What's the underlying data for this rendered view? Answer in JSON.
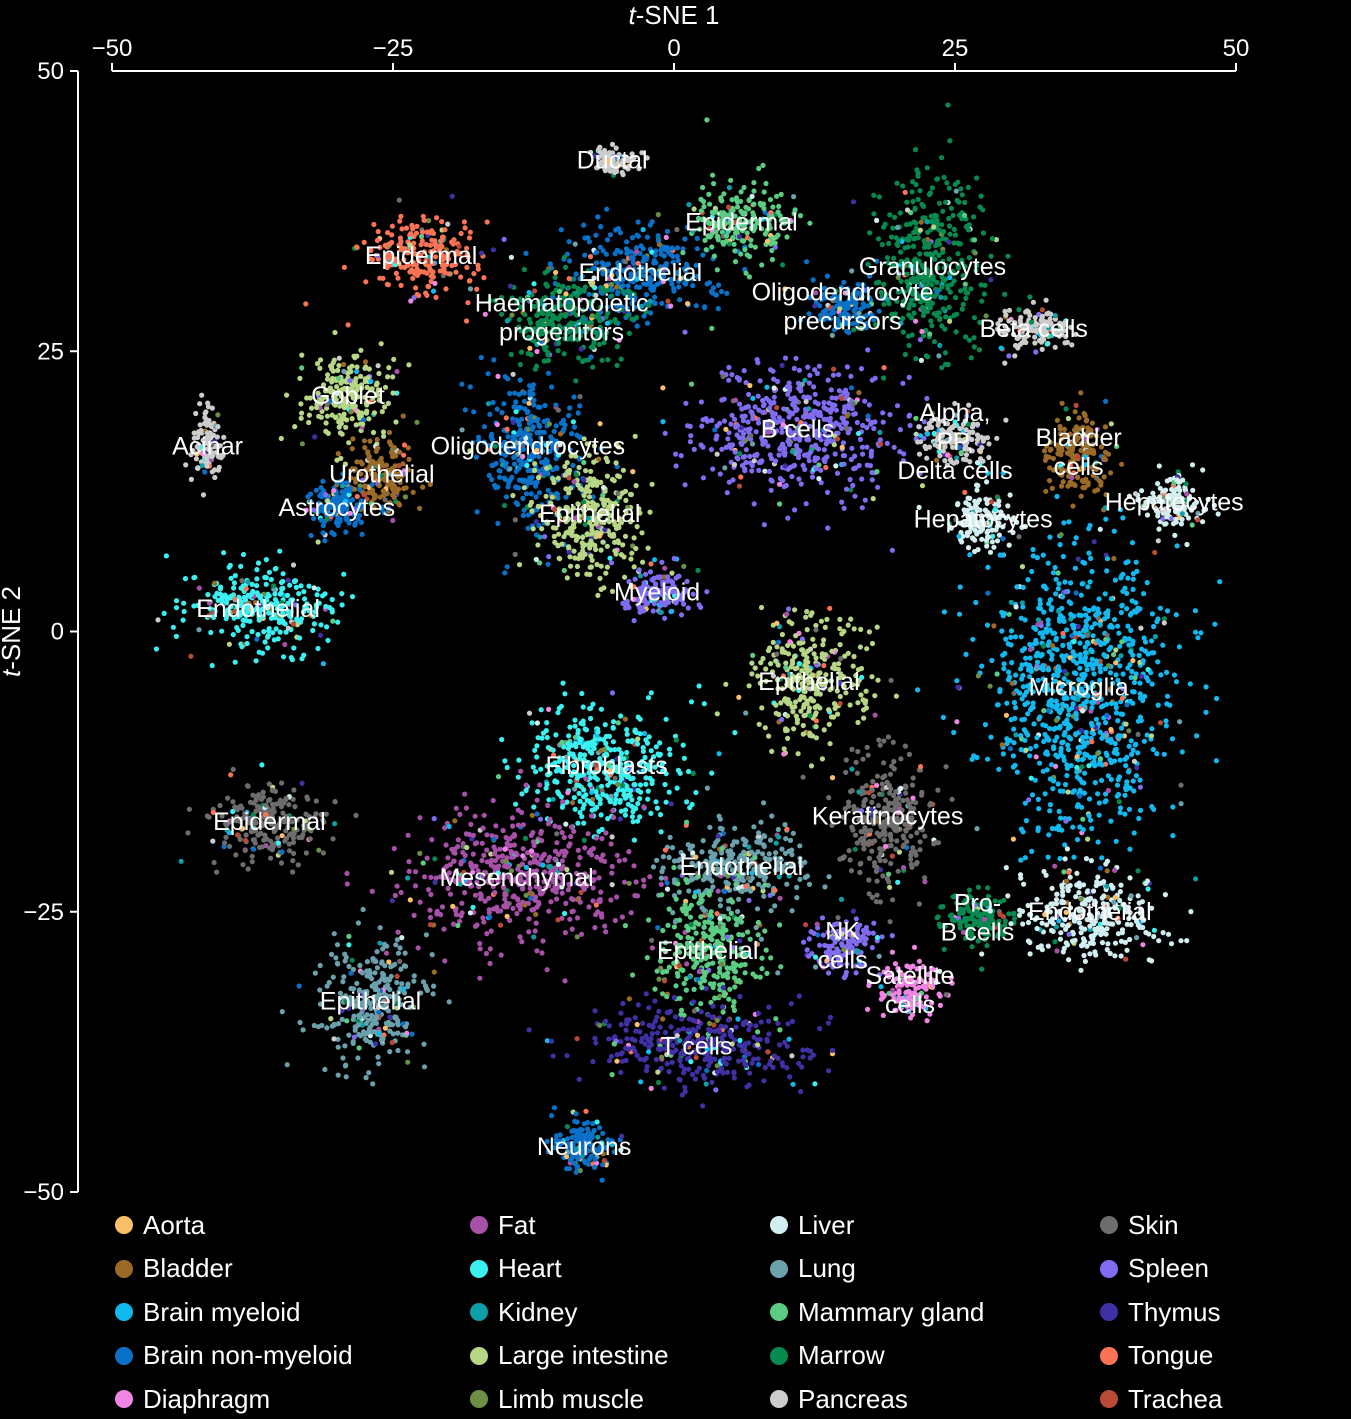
{
  "chart_data": {
    "type": "scatter",
    "xlabel_italic": "t",
    "xlabel_rest": "-SNE 1",
    "ylabel_italic": "t",
    "ylabel_rest": "-SNE 2",
    "xlim": [
      -50,
      50
    ],
    "ylim": [
      -50,
      50
    ],
    "xticks": [
      {
        "value": -50,
        "label": "−50"
      },
      {
        "value": -25,
        "label": "−25"
      },
      {
        "value": 0,
        "label": "0"
      },
      {
        "value": 25,
        "label": "25"
      },
      {
        "value": 50,
        "label": "50"
      }
    ],
    "yticks": [
      {
        "value": 50,
        "label": "50"
      },
      {
        "value": 25,
        "label": "25"
      },
      {
        "value": 0,
        "label": "0"
      },
      {
        "value": -25,
        "label": "−25"
      },
      {
        "value": -50,
        "label": "−50"
      }
    ],
    "grid": false,
    "legend_position": "bottom",
    "clusters": [
      {
        "label": "Ductal",
        "x": -5.5,
        "y": 42,
        "tissue": "Pancreas",
        "color": "#cccccc"
      },
      {
        "label": "Epidermal",
        "x": -22.5,
        "y": 33.5,
        "tissue": "Tongue",
        "color": "#fa7354"
      },
      {
        "label": "Endothelial",
        "x": -3,
        "y": 32,
        "tissue": "Brain non-myeloid",
        "color": "#0a71c9"
      },
      {
        "label": "Epidermal",
        "x": 6,
        "y": 36.5,
        "tissue": "Mammary gland",
        "color": "#5bcd83"
      },
      {
        "label": "Granulocytes",
        "x": 23,
        "y": 32.5,
        "tissue": "Marrow",
        "color": "#07894f"
      },
      {
        "label": "Haematopoietic progenitors",
        "x": -10,
        "y": 28,
        "tissue": "Marrow",
        "color": "#07894f"
      },
      {
        "label": "Oligodendrocyte precursors",
        "x": 15,
        "y": 29,
        "tissue": "Brain non-myeloid",
        "color": "#0a71c9"
      },
      {
        "label": "Beta cells",
        "x": 32,
        "y": 27,
        "tissue": "Pancreas",
        "color": "#cccccc"
      },
      {
        "label": "Goblet",
        "x": -29,
        "y": 21,
        "tissue": "Large intestine",
        "color": "#b7d686"
      },
      {
        "label": "Oligodendrocytes",
        "x": -13,
        "y": 16.5,
        "tissue": "Brain non-myeloid",
        "color": "#0a71c9"
      },
      {
        "label": "Acinar",
        "x": -41.5,
        "y": 16.5,
        "tissue": "Pancreas",
        "color": "#cccccc"
      },
      {
        "label": "B cells",
        "x": 11,
        "y": 18,
        "tissue": "Spleen",
        "color": "#7f6cf0"
      },
      {
        "label": "Alpha, PP, Delta cells",
        "x": 25,
        "y": 17,
        "tissue": "Pancreas",
        "color": "#cccccc"
      },
      {
        "label": "Bladder cells",
        "x": 36,
        "y": 16,
        "tissue": "Bladder",
        "color": "#9b6a26"
      },
      {
        "label": "Urothelial",
        "x": -26,
        "y": 14,
        "tissue": "Bladder",
        "color": "#9b6a26"
      },
      {
        "label": "Astrocytes",
        "x": -30,
        "y": 11,
        "tissue": "Brain non-myeloid",
        "color": "#0a71c9"
      },
      {
        "label": "Epithelial",
        "x": -7.5,
        "y": 10.5,
        "tissue": "Large intestine",
        "color": "#b7d686"
      },
      {
        "label": "Hepatocytes",
        "x": 27.5,
        "y": 10,
        "tissue": "Liver",
        "color": "#d2eef0"
      },
      {
        "label": "Hepatocytes",
        "x": 44.5,
        "y": 11.5,
        "tissue": "Liver",
        "color": "#d2eef0"
      },
      {
        "label": "Myeloid",
        "x": -1.5,
        "y": 3.5,
        "tissue": "Spleen",
        "color": "#7f6cf0"
      },
      {
        "label": "Endothelial",
        "x": -37,
        "y": 2,
        "tissue": "Heart",
        "color": "#3af0f0"
      },
      {
        "label": "Microglia",
        "x": 36,
        "y": -5,
        "tissue": "Brain myeloid",
        "color": "#12b9f0"
      },
      {
        "label": "Epithelial",
        "x": 12,
        "y": -4.5,
        "tissue": "Large intestine",
        "color": "#b7d686"
      },
      {
        "label": "Fibroblasts",
        "x": -6,
        "y": -12,
        "tissue": "Heart",
        "color": "#3af0f0"
      },
      {
        "label": "Keratinocytes",
        "x": 19,
        "y": -16.5,
        "tissue": "Skin",
        "color": "#6d6d6d"
      },
      {
        "label": "Epidermal",
        "x": -36,
        "y": -17,
        "tissue": "Skin",
        "color": "#6d6d6d"
      },
      {
        "label": "Mesenchymal",
        "x": -14,
        "y": -22,
        "tissue": "Fat",
        "color": "#a650a8"
      },
      {
        "label": "Endothelial",
        "x": 6,
        "y": -21,
        "tissue": "Lung",
        "color": "#6ba1ac"
      },
      {
        "label": "Pro-B cells",
        "x": 27,
        "y": -25.5,
        "tissue": "Marrow",
        "color": "#07894f"
      },
      {
        "label": "Endothelial",
        "x": 37,
        "y": -25,
        "tissue": "Liver",
        "color": "#d2eef0"
      },
      {
        "label": "NK cells",
        "x": 15,
        "y": -28,
        "tissue": "Spleen",
        "color": "#7f6cf0"
      },
      {
        "label": "Epithelial",
        "x": 3,
        "y": -28.5,
        "tissue": "Mammary gland",
        "color": "#5bcd83"
      },
      {
        "label": "Satellite cells",
        "x": 21,
        "y": -32,
        "tissue": "Diaphragm",
        "color": "#f085e6"
      },
      {
        "label": "Epithelial",
        "x": -27,
        "y": -33,
        "tissue": "Lung",
        "color": "#6ba1ac"
      },
      {
        "label": "T cells",
        "x": 2,
        "y": -37,
        "tissue": "Thymus",
        "color": "#4030a5"
      },
      {
        "label": "Neurons",
        "x": -8,
        "y": -46,
        "tissue": "Brain non-myeloid",
        "color": "#0a71c9"
      }
    ],
    "legend": [
      {
        "name": "Aorta",
        "color": "#fcbf6a"
      },
      {
        "name": "Bladder",
        "color": "#9b6a26"
      },
      {
        "name": "Brain myeloid",
        "color": "#12b9f0"
      },
      {
        "name": "Brain non-myeloid",
        "color": "#0a71c9"
      },
      {
        "name": "Diaphragm",
        "color": "#f085e6"
      },
      {
        "name": "Fat",
        "color": "#a650a8"
      },
      {
        "name": "Heart",
        "color": "#3af0f0"
      },
      {
        "name": "Kidney",
        "color": "#0e9ea6"
      },
      {
        "name": "Large intestine",
        "color": "#b7d686"
      },
      {
        "name": "Limb muscle",
        "color": "#6b8f45"
      },
      {
        "name": "Liver",
        "color": "#d2eef0"
      },
      {
        "name": "Lung",
        "color": "#6ba1ac"
      },
      {
        "name": "Mammary gland",
        "color": "#5bcd83"
      },
      {
        "name": "Marrow",
        "color": "#07894f"
      },
      {
        "name": "Pancreas",
        "color": "#cccccc"
      },
      {
        "name": "Skin",
        "color": "#6d6d6d"
      },
      {
        "name": "Spleen",
        "color": "#7f6cf0"
      },
      {
        "name": "Thymus",
        "color": "#4030a5"
      },
      {
        "name": "Tongue",
        "color": "#fa7354"
      },
      {
        "name": "Trachea",
        "color": "#b84a36"
      }
    ]
  }
}
